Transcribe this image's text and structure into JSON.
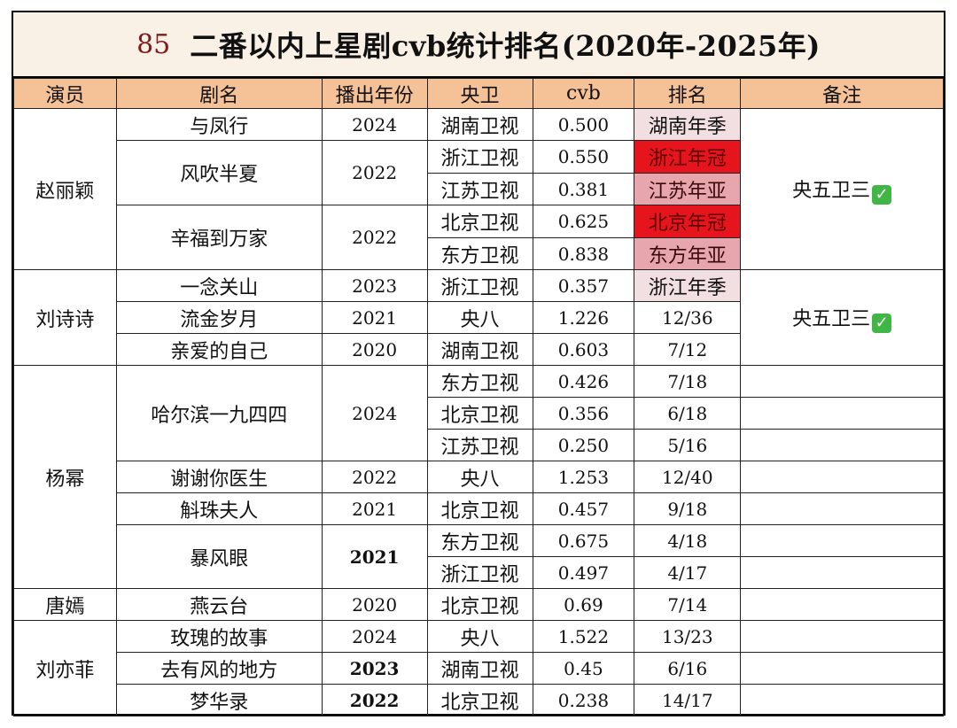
{
  "title": {
    "number": "85",
    "text": "二番以内上星剧cvb统计排名(2020年-2025年)"
  },
  "headers": [
    "演员",
    "剧名",
    "播出年份",
    "央卫",
    "cvb",
    "排名",
    "备注"
  ],
  "actors": [
    "赵丽颖",
    "刘诗诗",
    "杨幂",
    "唐嫣",
    "刘亦菲"
  ],
  "dramas": [
    "与凤行",
    "风吹半夏",
    "辛福到万家",
    "一念关山",
    "流金岁月",
    "亲爱的自己",
    "哈尔滨一九四四",
    "谢谢你医生",
    "斛珠夫人",
    "暴风眼",
    "燕云台",
    "玫瑰的故事",
    "去有风的地方",
    "梦华录"
  ],
  "years": [
    "2024",
    "2022",
    "2022",
    "2023",
    "2021",
    "2020",
    "2024",
    "2022",
    "2021",
    "2021",
    "2020",
    "2024",
    "2023",
    "2022"
  ],
  "channels": [
    "湖南卫视",
    "浙江卫视",
    "江苏卫视",
    "北京卫视",
    "东方卫视",
    "浙江卫视",
    "央八",
    "湖南卫视",
    "东方卫视",
    "北京卫视",
    "江苏卫视",
    "央八",
    "北京卫视",
    "东方卫视",
    "浙江卫视",
    "北京卫视",
    "央八",
    "湖南卫视",
    "北京卫视"
  ],
  "cvb": [
    "0.500",
    "0.550",
    "0.381",
    "0.625",
    "0.838",
    "0.357",
    "1.226",
    "0.603",
    "0.426",
    "0.356",
    "0.250",
    "1.253",
    "0.457",
    "0.675",
    "0.497",
    "0.69",
    "1.522",
    "0.45",
    "0.238"
  ],
  "ranks": [
    "湖南年季",
    "浙江年冠",
    "江苏年亚",
    "北京年冠",
    "东方年亚",
    "浙江年季",
    "12/36",
    "7/12",
    "7/18",
    "6/18",
    "5/16",
    "12/40",
    "9/18",
    "4/18",
    "4/17",
    "7/14",
    "13/23",
    "6/16",
    "14/17"
  ],
  "notes": [
    "央五卫三",
    "央五卫三"
  ],
  "rank_colors": {
    "light": "#f2dfe2",
    "red": "#e6141c",
    "pink": "#e7a5ad"
  },
  "header_color": "#f5c197",
  "title_bg": "#f9f0e6",
  "check_icon": "green-check-mark"
}
